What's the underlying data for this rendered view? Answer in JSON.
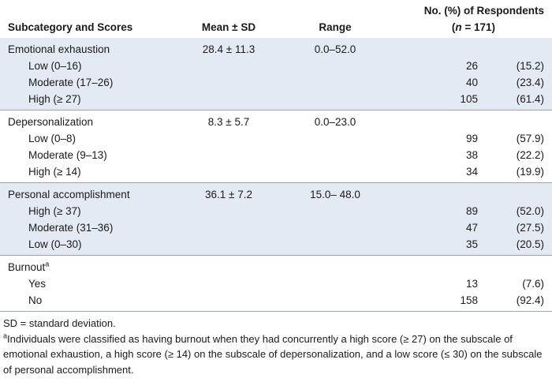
{
  "header": {
    "subcategory": "Subcategory and Scores",
    "mean_sd": "Mean ± SD",
    "range": "Range",
    "respondents": {
      "title": "No. (%) of Respondents",
      "open": "(",
      "n": "n",
      "close": " = 171)"
    }
  },
  "groups": [
    {
      "name": "Emotional exhaustion",
      "mean_sd": "28.4 ± 11.3",
      "range": "0.0–52.0",
      "rows": [
        {
          "label": "Low (0–16)",
          "count": 26,
          "percent": "(15.2)"
        },
        {
          "label": "Moderate (17–26)",
          "count": 40,
          "percent": "(23.4)"
        },
        {
          "label": "High (≥ 27)",
          "count": 105,
          "percent": "(61.4)"
        }
      ]
    },
    {
      "name": "Depersonalization",
      "mean_sd": "8.3 ± 5.7",
      "range": "0.0–23.0",
      "rows": [
        {
          "label": "Low (0–8)",
          "count": 99,
          "percent": "(57.9)"
        },
        {
          "label": "Moderate (9–13)",
          "count": 38,
          "percent": "(22.2)"
        },
        {
          "label": "High (≥ 14)",
          "count": 34,
          "percent": "(19.9)"
        }
      ]
    },
    {
      "name": "Personal accomplishment",
      "mean_sd": "36.1 ± 7.2",
      "range": "15.0– 48.0",
      "rows": [
        {
          "label": "High (≥ 37)",
          "count": 89,
          "percent": "(52.0)"
        },
        {
          "label": "Moderate (31–36)",
          "count": 47,
          "percent": "(27.5)"
        },
        {
          "label": "Low (0–30)",
          "count": 35,
          "percent": "(20.5)"
        }
      ]
    },
    {
      "name": "Burnout",
      "marker": "a",
      "rows": [
        {
          "label": "Yes",
          "count": 13,
          "percent": "(7.6)"
        },
        {
          "label": "No",
          "count": 158,
          "percent": "(92.4)"
        }
      ]
    }
  ],
  "footnotes": {
    "abbreviation": "SD = standard deviation.",
    "marker": "a",
    "text": "Individuals were classified as having burnout when they had concurrently a high score (≥ 27) on the subscale of emotional exhaustion, a high score (≥ 14) on the subscale of depersonalization, and a low score (≤ 30) on the subscale of personal accomplishment."
  }
}
